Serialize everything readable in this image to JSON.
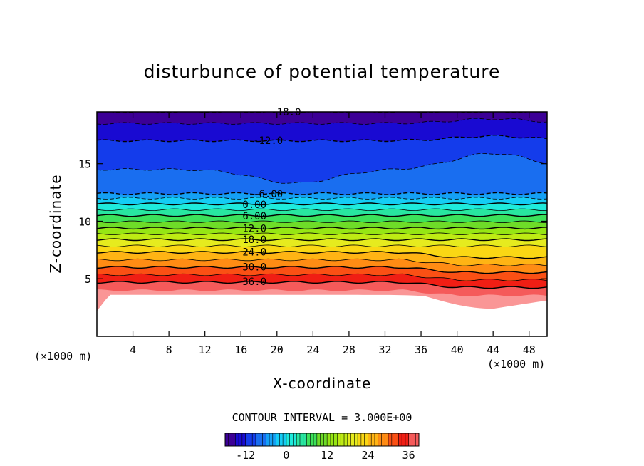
{
  "chart_data": {
    "type": "heatmap",
    "title": "disturbunce of potential temperature",
    "xlabel": "X-coordinate",
    "ylabel": "Z-coordinate",
    "x_unit": "(×1000 m)",
    "z_unit": "(×1000 m)",
    "xlim": [
      0,
      50
    ],
    "ylim": [
      0,
      19.5
    ],
    "x_ticks": [
      4,
      8,
      12,
      16,
      20,
      24,
      28,
      32,
      36,
      40,
      44,
      48
    ],
    "y_ticks": [
      5,
      10,
      15
    ],
    "contour_interval_label": "CONTOUR INTERVAL = 3.000E+00",
    "contour_interval": 3.0,
    "colorbar": {
      "min": -18,
      "max": 39,
      "ticks": [
        "-12",
        "0",
        "12",
        "24",
        "36"
      ],
      "tick_values": [
        -12,
        0,
        12,
        24,
        36
      ]
    },
    "contour_labels": [
      {
        "text": "-18.0",
        "value": -18,
        "x": 21,
        "z": 19.5
      },
      {
        "text": "-12.0",
        "value": -12,
        "x": 19,
        "z": 16.7
      },
      {
        "text": "-6.00",
        "value": -6,
        "x": 19,
        "z": 12.4
      },
      {
        "text": "0.00",
        "value": 0,
        "x": 17.5,
        "z": 11.5
      },
      {
        "text": "6.00",
        "value": 6,
        "x": 17.5,
        "z": 10.5
      },
      {
        "text": "12.0",
        "value": 12,
        "x": 17.5,
        "z": 9.4
      },
      {
        "text": "18.0",
        "value": 18,
        "x": 17.5,
        "z": 8.4
      },
      {
        "text": "24.0",
        "value": 24,
        "x": 17.5,
        "z": 7.3
      },
      {
        "text": "30.0",
        "value": 30,
        "x": 17.5,
        "z": 6.0
      },
      {
        "text": "36.0",
        "value": 36,
        "x": 17.5,
        "z": 4.7
      }
    ],
    "field_profile_by_height": [
      {
        "z": 19.5,
        "value": -18
      },
      {
        "z": 18.5,
        "value": -15
      },
      {
        "z": 17.0,
        "value": -12
      },
      {
        "z": 14.5,
        "value": -9
      },
      {
        "z": 12.4,
        "value": -6
      },
      {
        "z": 12.0,
        "value": -3
      },
      {
        "z": 11.5,
        "value": 0
      },
      {
        "z": 10.5,
        "value": 6
      },
      {
        "z": 9.4,
        "value": 12
      },
      {
        "z": 8.4,
        "value": 18
      },
      {
        "z": 7.3,
        "value": 24
      },
      {
        "z": 6.0,
        "value": 30
      },
      {
        "z": 4.7,
        "value": 36
      },
      {
        "z": 4.0,
        "value": 39
      }
    ],
    "undefined_region": "below surface (lower-left and x 36-50 dip)"
  }
}
